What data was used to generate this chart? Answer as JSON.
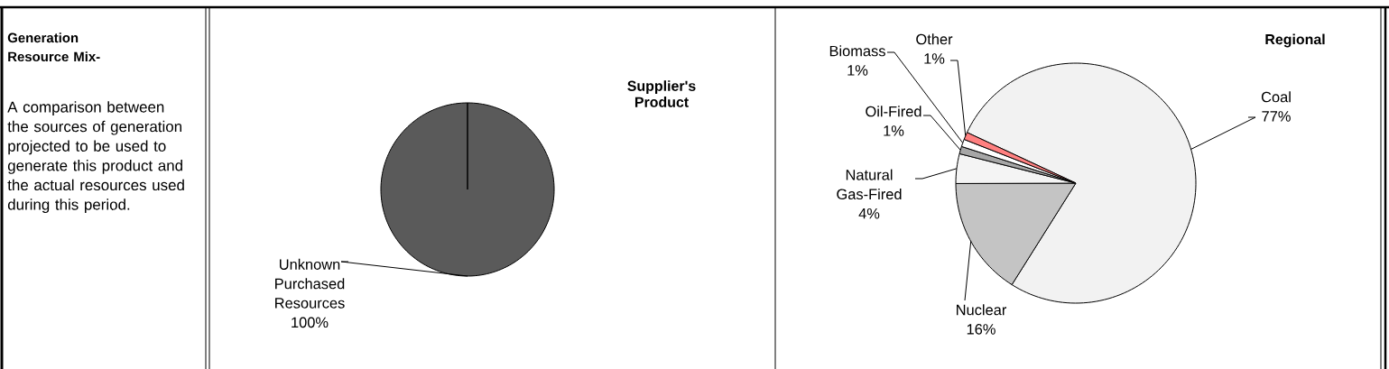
{
  "chart_data": [
    {
      "type": "other",
      "title": "Generation Resource Mix-",
      "annotations": [
        "A comparison between the sources of generation projected to be used to generate this product and the actual resources used during this period."
      ]
    },
    {
      "type": "pie",
      "title": "Supplier's Product",
      "categories": [
        "Unknown Purchased Resources"
      ],
      "values": [
        100
      ],
      "colors": [
        "#5a5a5a"
      ],
      "value_labels": [
        "100%"
      ]
    },
    {
      "type": "pie",
      "title": "Regional",
      "categories": [
        "Coal",
        "Nuclear",
        "Natural Gas-Fired",
        "Oil-Fired",
        "Biomass",
        "Other"
      ],
      "values": [
        77,
        16,
        4,
        1,
        1,
        1
      ],
      "colors": [
        "#f2f2f2",
        "#c4c4c4",
        "#f4f4f4",
        "#a6a6a6",
        "#ffffff",
        "#ff8080"
      ],
      "value_labels": [
        "77%",
        "16%",
        "4%",
        "1%",
        "1%",
        "1%"
      ]
    }
  ]
}
